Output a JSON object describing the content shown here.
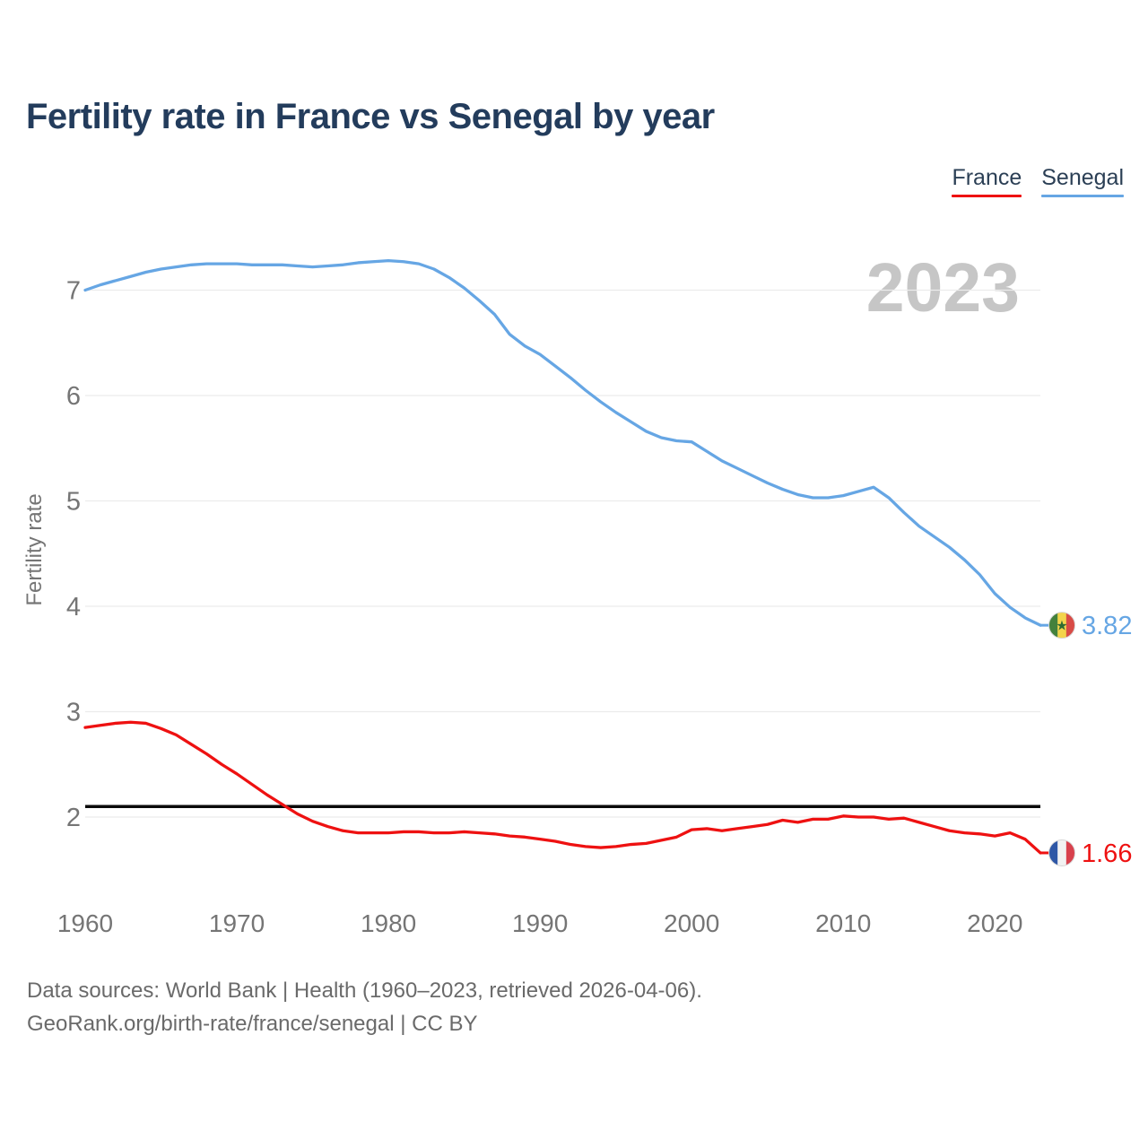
{
  "title": "Fertility rate in France vs Senegal by year",
  "watermark": "2023",
  "footer": {
    "line1": "Data sources: World Bank | Health (1960–2023, retrieved 2026-04-06).",
    "line2": "GeoRank.org/birth-rate/france/senegal | CC BY"
  },
  "flags": {
    "france": {
      "name": "france-flag",
      "stripes": [
        "#2e57a6",
        "#f2f2f2",
        "#d8414d"
      ],
      "star": null
    },
    "senegal": {
      "name": "senegal-flag",
      "stripes": [
        "#43813c",
        "#f3d44c",
        "#d84b46"
      ],
      "star": "#2f6b33"
    }
  },
  "chart_data": {
    "type": "line",
    "title": "Fertility rate in France vs Senegal by year",
    "xlabel": "",
    "ylabel": "Fertility rate",
    "grid": true,
    "legend_position": "top-right",
    "ylim": [
      1.5,
      7.45
    ],
    "yticks": [
      2,
      3,
      4,
      5,
      6,
      7
    ],
    "xticks": [
      1960,
      1970,
      1980,
      1990,
      2000,
      2010,
      2020
    ],
    "reference_line": {
      "value": 2.1,
      "color": "#0a0a0a"
    },
    "x": [
      1960,
      1961,
      1962,
      1963,
      1964,
      1965,
      1966,
      1967,
      1968,
      1969,
      1970,
      1971,
      1972,
      1973,
      1974,
      1975,
      1976,
      1977,
      1978,
      1979,
      1980,
      1981,
      1982,
      1983,
      1984,
      1985,
      1986,
      1987,
      1988,
      1989,
      1990,
      1991,
      1992,
      1993,
      1994,
      1995,
      1996,
      1997,
      1998,
      1999,
      2000,
      2001,
      2002,
      2003,
      2004,
      2005,
      2006,
      2007,
      2008,
      2009,
      2010,
      2011,
      2012,
      2013,
      2014,
      2015,
      2016,
      2017,
      2018,
      2019,
      2020,
      2021,
      2022,
      2023
    ],
    "series": [
      {
        "name": "France",
        "color": "#ee1111",
        "end_label": "1.66",
        "flag": "france",
        "values": [
          2.85,
          2.87,
          2.89,
          2.9,
          2.89,
          2.84,
          2.78,
          2.69,
          2.6,
          2.5,
          2.41,
          2.31,
          2.21,
          2.12,
          2.03,
          1.96,
          1.91,
          1.87,
          1.85,
          1.85,
          1.85,
          1.86,
          1.86,
          1.85,
          1.85,
          1.86,
          1.85,
          1.84,
          1.82,
          1.81,
          1.79,
          1.77,
          1.74,
          1.72,
          1.71,
          1.72,
          1.74,
          1.75,
          1.78,
          1.81,
          1.88,
          1.89,
          1.87,
          1.89,
          1.91,
          1.93,
          1.97,
          1.95,
          1.98,
          1.98,
          2.01,
          2.0,
          2.0,
          1.98,
          1.99,
          1.95,
          1.91,
          1.87,
          1.85,
          1.84,
          1.82,
          1.85,
          1.79,
          1.66
        ]
      },
      {
        "name": "Senegal",
        "color": "#66a6e4",
        "end_label": "3.82",
        "flag": "senegal",
        "values": [
          7.0,
          7.05,
          7.09,
          7.13,
          7.17,
          7.2,
          7.22,
          7.24,
          7.25,
          7.25,
          7.25,
          7.24,
          7.24,
          7.24,
          7.23,
          7.22,
          7.23,
          7.24,
          7.26,
          7.27,
          7.28,
          7.27,
          7.25,
          7.2,
          7.12,
          7.02,
          6.9,
          6.77,
          6.58,
          6.47,
          6.39,
          6.28,
          6.17,
          6.05,
          5.94,
          5.84,
          5.75,
          5.66,
          5.6,
          5.57,
          5.56,
          5.47,
          5.38,
          5.31,
          5.24,
          5.17,
          5.11,
          5.06,
          5.03,
          5.03,
          5.05,
          5.09,
          5.13,
          5.03,
          4.89,
          4.76,
          4.66,
          4.56,
          4.44,
          4.3,
          4.12,
          3.99,
          3.89,
          3.82
        ]
      }
    ]
  }
}
